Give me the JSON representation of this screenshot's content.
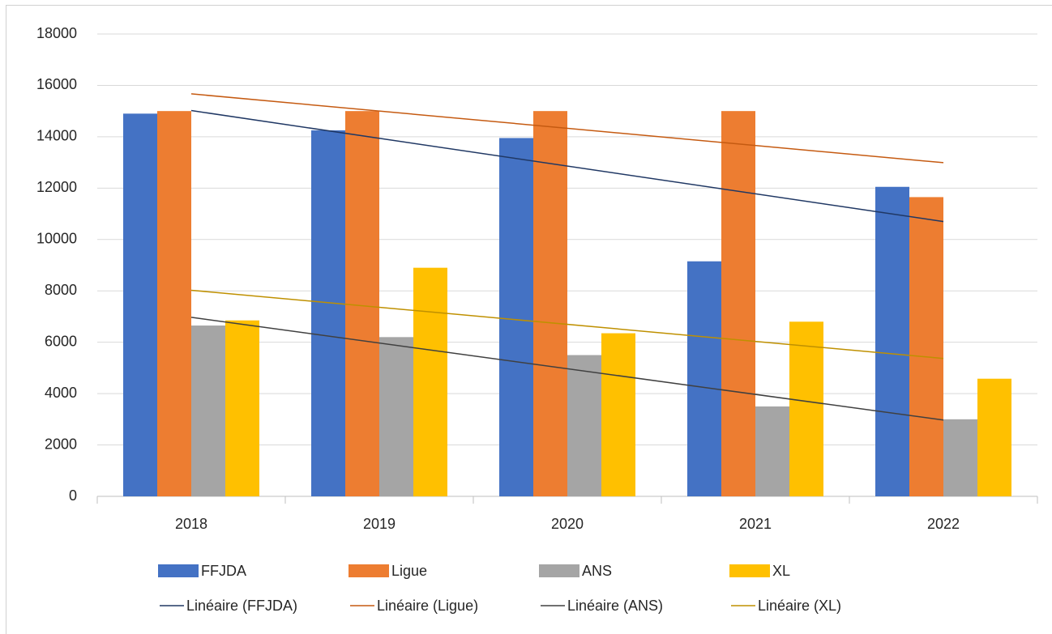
{
  "chart_data": {
    "type": "bar",
    "categories": [
      "2018",
      "2019",
      "2020",
      "2021",
      "2022"
    ],
    "series": [
      {
        "name": "FFJDA",
        "color": "#4472c4",
        "values": [
          14900,
          14250,
          13950,
          9150,
          12050
        ],
        "trendline": {
          "name": "Linéaire (FFJDA)",
          "color": "#203864"
        }
      },
      {
        "name": "Ligue",
        "color": "#ed7d31",
        "values": [
          15000,
          15000,
          15000,
          15000,
          11650
        ],
        "trendline": {
          "name": "Linéaire (Ligue)",
          "color": "#c55a11"
        }
      },
      {
        "name": "ANS",
        "color": "#a5a5a5",
        "values": [
          6650,
          6200,
          5500,
          3500,
          3000
        ],
        "trendline": {
          "name": "Linéaire (ANS)",
          "color": "#404040"
        }
      },
      {
        "name": "XL",
        "color": "#ffc000",
        "values": [
          6850,
          8900,
          6350,
          6800,
          4580
        ],
        "trendline": {
          "name": "Linéaire (XL)",
          "color": "#bf9000"
        }
      }
    ],
    "ylim": [
      0,
      18000
    ],
    "yticks": [
      0,
      2000,
      4000,
      6000,
      8000,
      10000,
      12000,
      14000,
      16000,
      18000
    ],
    "grid": true,
    "legend": "bottom"
  }
}
